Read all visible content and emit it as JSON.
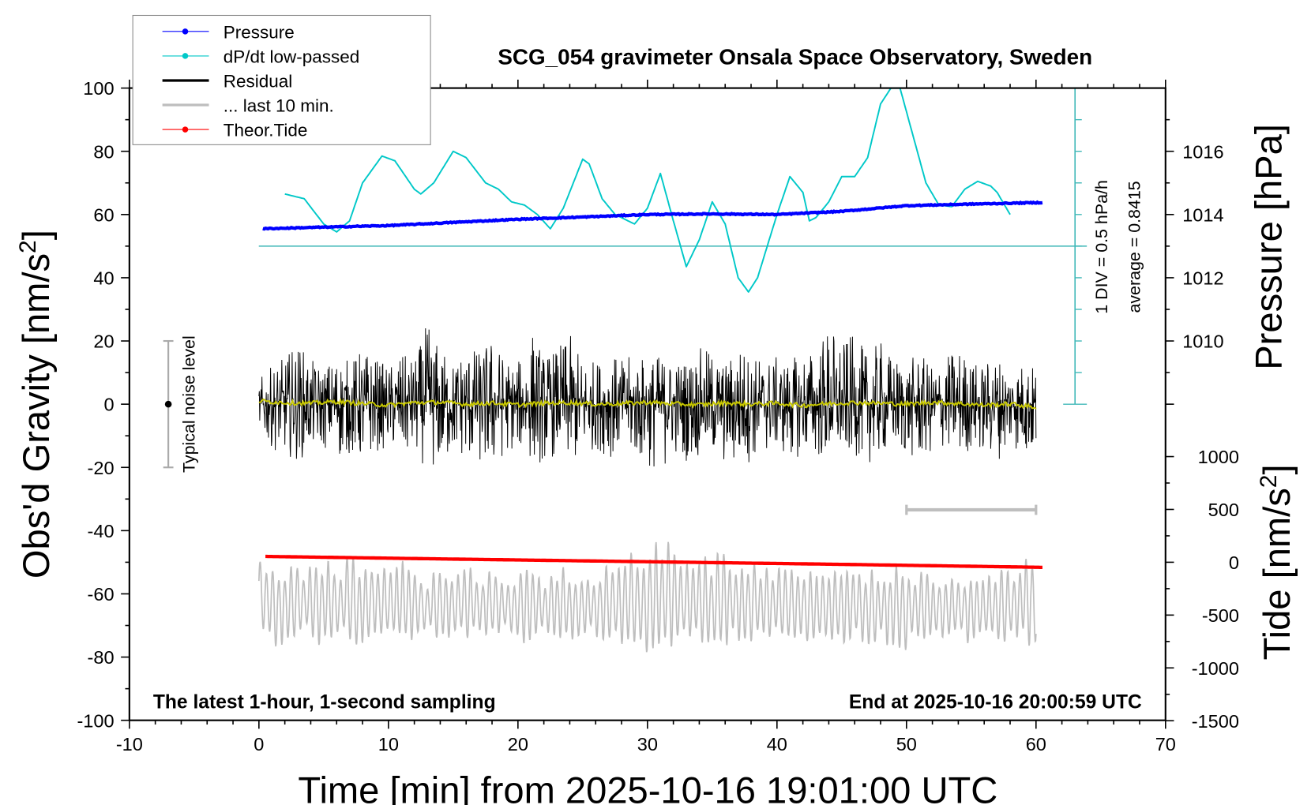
{
  "chart_data": {
    "type": "line",
    "title": "SCG_054 gravimeter Onsala Space Observatory, Sweden",
    "xlabel": "Time [min] from 2025-10-16 19:01:00 UTC",
    "ylabel_left": "Obs'd Gravity [nm/s",
    "ylabel_left_sup": "2",
    "ylabel_left_end": "]",
    "ylabel_right_pressure": "Pressure [hPa]",
    "ylabel_right_tide": "Tide [nm/s",
    "ylabel_right_tide_sup": "2",
    "ylabel_right_tide_end": "]",
    "xlim": [
      -10,
      70
    ],
    "ylim": [
      -100,
      100
    ],
    "pressure_lim": [
      1007,
      1017
    ],
    "tide_lim": [
      -1500,
      1000
    ],
    "x_ticks": [
      -10,
      0,
      10,
      20,
      30,
      40,
      50,
      60,
      70
    ],
    "y_ticks": [
      -100,
      -80,
      -60,
      -40,
      -20,
      0,
      20,
      40,
      60,
      80,
      100
    ],
    "pressure_ticks": [
      1010,
      1012,
      1014,
      1016
    ],
    "tide_ticks": [
      -1500,
      -1000,
      -500,
      0,
      500,
      1000
    ],
    "grid": false,
    "legend_placement": "top-left",
    "legend": [
      {
        "label": "Pressure",
        "color": "#0000ff",
        "marker": "dot"
      },
      {
        "label": "dP/dt low-passed",
        "color": "#00c8c8",
        "marker": "dot"
      },
      {
        "label": "Residual",
        "color": "#000000",
        "marker": "line"
      },
      {
        "label": "... last 10 min.",
        "color": "#bebebe",
        "marker": "line"
      },
      {
        "label": "Theor.Tide",
        "color": "#ff0000",
        "marker": "dot"
      }
    ],
    "annotations": {
      "bottom_left": "The latest 1-hour, 1-second sampling",
      "bottom_right": "End at 2025-10-16 20:00:59 UTC",
      "noise": "Typical noise level",
      "noise_level_range": [
        -20,
        20
      ],
      "dpdt_scale": "1 DIV = 0.5 hPa/h",
      "dpdt_average": "average = 0.8415",
      "last10_scale_bar_minutes": [
        50,
        60
      ]
    },
    "series": {
      "pressure_hPa": {
        "x": [
          0.3,
          5,
          10,
          15,
          20,
          25,
          30,
          35,
          40,
          45,
          50,
          55,
          60.5
        ],
        "values": [
          1013.55,
          1013.6,
          1013.65,
          1013.75,
          1013.85,
          1013.92,
          1014.0,
          1014.02,
          1014.0,
          1014.1,
          1014.28,
          1014.33,
          1014.38
        ]
      },
      "dpdt_deviation_from_average_hPa_per_h": {
        "x": [
          2,
          3.5,
          5,
          6,
          7,
          8,
          9.5,
          10.5,
          12,
          12.5,
          13.5,
          15,
          16,
          17.5,
          18.5,
          19.5,
          20.5,
          21.5,
          22.5,
          23.5,
          25,
          25.5,
          26.5,
          27.5,
          29,
          30,
          31,
          32,
          33,
          34,
          35,
          36,
          37,
          37.8,
          38.5,
          40,
          41,
          42,
          42.5,
          43,
          44,
          45,
          46,
          47,
          48,
          48.8,
          49.5,
          50.5,
          51.5,
          52.5,
          53.5,
          54.5,
          55.5,
          56.5,
          57,
          58
        ],
        "values": [
          0.825,
          0.75,
          0.35,
          0.225,
          0.4,
          1.0,
          1.425,
          1.35,
          0.9,
          0.825,
          1.0,
          1.5,
          1.4,
          1.0,
          0.9,
          0.7,
          0.65,
          0.5,
          0.275,
          0.6,
          1.375,
          1.3,
          0.75,
          0.5,
          0.35,
          0.6,
          1.15,
          0.4,
          -0.325,
          0.1,
          0.7,
          0.35,
          -0.5,
          -0.725,
          -0.5,
          0.5,
          1.1,
          0.85,
          0.4,
          0.45,
          0.7,
          1.1,
          1.1,
          1.4,
          2.25,
          2.5,
          2.5,
          1.75,
          1.0,
          0.65,
          0.625,
          0.9,
          1.025,
          0.95,
          0.85,
          0.5
        ]
      },
      "residual_per_minute_max": [
        8,
        12,
        15,
        20,
        14,
        12,
        16,
        14,
        18,
        15,
        12,
        16,
        14,
        26,
        18,
        14,
        20,
        17,
        22,
        15,
        13,
        25,
        16,
        18,
        22,
        15,
        14,
        17,
        14,
        16,
        15,
        16,
        14,
        15,
        18,
        17,
        13,
        20,
        16,
        15,
        15,
        14,
        17,
        18,
        26,
        20,
        22,
        16,
        20,
        15,
        14,
        16,
        12,
        15,
        19,
        14,
        13,
        16,
        12,
        14,
        12
      ],
      "residual_per_minute_min": [
        -10,
        -14,
        -16,
        -18,
        -15,
        -14,
        -18,
        -16,
        -20,
        -15,
        -14,
        -18,
        -17,
        -20,
        -22,
        -16,
        -18,
        -20,
        -22,
        -16,
        -14,
        -18,
        -19,
        -16,
        -20,
        -18,
        -14,
        -17,
        -16,
        -18,
        -20,
        -22,
        -16,
        -18,
        -17,
        -18,
        -20,
        -22,
        -18,
        -16,
        -15,
        -18,
        -16,
        -17,
        -20,
        -18,
        -16,
        -19,
        -17,
        -15,
        -17,
        -19,
        -16,
        -14,
        -17,
        -15,
        -16,
        -18,
        -14,
        -16,
        -20
      ],
      "residual_smoothed_per_2min": [
        1,
        0.5,
        0.3,
        0.8,
        0.2,
        -0.3,
        0.5,
        0.6,
        0,
        0.4,
        -0.2,
        0.3,
        0.5,
        0,
        0.2,
        0.6,
        0.1,
        -0.2,
        0.4,
        0,
        0.3,
        -0.4,
        0.2,
        0.5,
        0.3,
        0,
        0.6,
        0.2,
        -0.3,
        0.1,
        -1
      ],
      "last10_per_minute_max": [
        -50,
        -48,
        -52,
        -50,
        -51,
        -48,
        -52,
        -47,
        -50,
        -48,
        -52,
        -47,
        -50,
        -55,
        -51,
        -53,
        -50,
        -55,
        -52,
        -55,
        -53,
        -48,
        -55,
        -50,
        -52,
        -55,
        -54,
        -50,
        -48,
        -45,
        -47,
        -40,
        -45,
        -50,
        -48,
        -47,
        -46,
        -48,
        -50,
        -52,
        -50,
        -51,
        -50,
        -50,
        -54,
        -50,
        -52,
        -52,
        -52,
        -50,
        -51,
        -52,
        -54,
        -55,
        -54,
        -52,
        -56,
        -50,
        -52,
        -47,
        -48
      ],
      "last10_per_minute_min": [
        -70,
        -78,
        -76,
        -74,
        -75,
        -78,
        -74,
        -76,
        -78,
        -74,
        -76,
        -79,
        -75,
        -73,
        -76,
        -74,
        -75,
        -72,
        -74,
        -73,
        -75,
        -78,
        -74,
        -76,
        -75,
        -73,
        -74,
        -77,
        -78,
        -80,
        -79,
        -82,
        -78,
        -76,
        -77,
        -79,
        -78,
        -77,
        -76,
        -74,
        -75,
        -76,
        -77,
        -78,
        -76,
        -77,
        -75,
        -78,
        -76,
        -77,
        -78,
        -76,
        -75,
        -74,
        -75,
        -76,
        -74,
        -78,
        -76,
        -77,
        -76
      ],
      "theoretical_tide_nm_s2": {
        "x": [
          0.5,
          15,
          30,
          45,
          60.5
        ],
        "values": [
          55,
          30,
          5,
          -20,
          -48
        ]
      }
    },
    "colors": {
      "pressure": "#0000ff",
      "dpdt": "#00c8c8",
      "dpdt_axis": "#40b8b8",
      "residual": "#000000",
      "smoothed": "#c8c800",
      "last10": "#bebebe",
      "tide": "#ff0000"
    }
  }
}
